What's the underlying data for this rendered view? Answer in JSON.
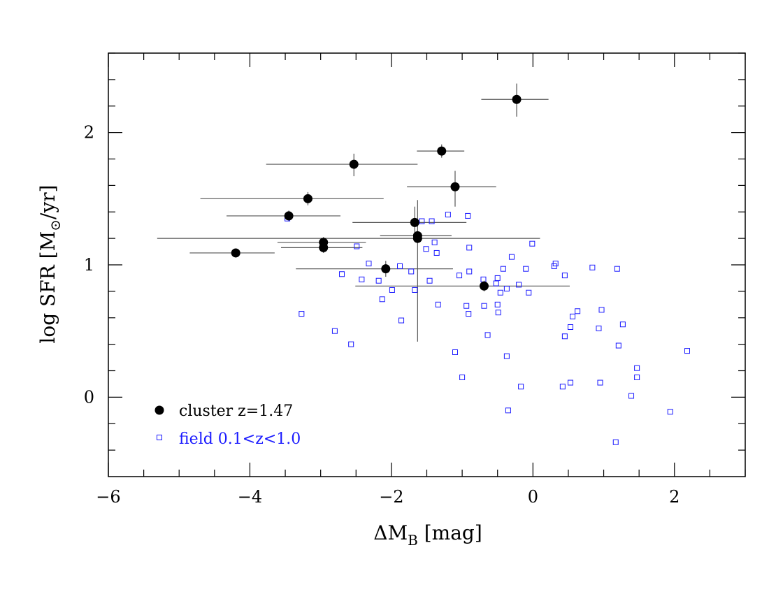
{
  "chart_data": {
    "type": "scatter",
    "xlabel": {
      "main": "ΔM",
      "sub": "B",
      "rest": " [mag]"
    },
    "ylabel": {
      "main": "log  SFR  [M",
      "sub": "⊙",
      "rest": "/yr]"
    },
    "xlim": [
      -6,
      3
    ],
    "ylim": [
      -0.6,
      2.6
    ],
    "x_ticks": [
      -6,
      -4,
      -2,
      0,
      2
    ],
    "x_tick_labels": [
      "−6",
      "−4",
      "−2",
      "0",
      "2"
    ],
    "y_ticks": [
      0,
      1,
      2
    ],
    "y_tick_labels": [
      "0",
      "1",
      "2"
    ],
    "grid": false,
    "legend_placement": "bottom-left",
    "series": [
      {
        "name": "cluster  z=1.47",
        "color": "#000000",
        "marker": "filled-circle",
        "points": [
          {
            "x": -0.23,
            "y": 2.25,
            "xerr": [
              0.5,
              0.45
            ],
            "yerr": [
              0.13,
              0.12
            ]
          },
          {
            "x": -1.29,
            "y": 1.86,
            "xerr": [
              0.35,
              0.32
            ],
            "yerr": [
              0.05,
              0.05
            ]
          },
          {
            "x": -2.53,
            "y": 1.76,
            "xerr": [
              1.24,
              0.9
            ],
            "yerr": [
              0.09,
              0.08
            ]
          },
          {
            "x": -1.1,
            "y": 1.59,
            "xerr": [
              0.68,
              0.58
            ],
            "yerr": [
              0.15,
              0.12
            ]
          },
          {
            "x": -3.18,
            "y": 1.5,
            "xerr": [
              1.52,
              1.07
            ],
            "yerr": [
              0.05,
              0.05
            ]
          },
          {
            "x": -3.45,
            "y": 1.37,
            "xerr": [
              0.88,
              0.73
            ],
            "yerr": [
              0.04,
              0.04
            ]
          },
          {
            "x": -1.67,
            "y": 1.32,
            "xerr": [
              0.88,
              0.73
            ],
            "yerr": [
              0.12,
              0.12
            ]
          },
          {
            "x": -1.63,
            "y": 1.22,
            "xerr": [
              0.53,
              0.48
            ],
            "yerr": [
              0.04,
              0.04
            ]
          },
          {
            "x": -1.63,
            "y": 1.2,
            "xerr": [
              3.68,
              1.73
            ],
            "yerr": [
              0.78,
              0.29
            ]
          },
          {
            "x": -2.96,
            "y": 1.17,
            "xerr": [
              0.65,
              0.6
            ],
            "yerr": [
              0.04,
              0.04
            ]
          },
          {
            "x": -2.96,
            "y": 1.13,
            "xerr": [
              0.6,
              0.55
            ],
            "yerr": [
              0.04,
              0.04
            ]
          },
          {
            "x": -4.2,
            "y": 1.09,
            "xerr": [
              0.65,
              0.55
            ],
            "yerr": [
              0.03,
              0.03
            ]
          },
          {
            "x": -2.08,
            "y": 0.97,
            "xerr": [
              1.27,
              0.95
            ],
            "yerr": [
              0.06,
              0.06
            ]
          },
          {
            "x": -0.69,
            "y": 0.84,
            "xerr": [
              1.82,
              1.21
            ],
            "yerr": [
              0.04,
              0.04
            ]
          }
        ]
      },
      {
        "name": "field  0.1<z<1.0",
        "color": "#1a1aff",
        "marker": "open-square",
        "points": [
          {
            "x": -3.47,
            "y": 1.35
          },
          {
            "x": -2.49,
            "y": 1.14
          },
          {
            "x": -1.2,
            "y": 1.38
          },
          {
            "x": -0.92,
            "y": 1.37
          },
          {
            "x": -1.57,
            "y": 1.33
          },
          {
            "x": -1.43,
            "y": 1.33
          },
          {
            "x": -1.39,
            "y": 1.17
          },
          {
            "x": -1.51,
            "y": 1.12
          },
          {
            "x": -1.36,
            "y": 1.09
          },
          {
            "x": -0.9,
            "y": 1.13
          },
          {
            "x": -0.01,
            "y": 1.16
          },
          {
            "x": -0.3,
            "y": 1.06
          },
          {
            "x": -2.32,
            "y": 1.01
          },
          {
            "x": -1.88,
            "y": 0.99
          },
          {
            "x": -1.72,
            "y": 0.95
          },
          {
            "x": -0.42,
            "y": 0.97
          },
          {
            "x": -0.1,
            "y": 0.97
          },
          {
            "x": 0.3,
            "y": 0.99
          },
          {
            "x": 0.32,
            "y": 1.01
          },
          {
            "x": 0.84,
            "y": 0.98
          },
          {
            "x": 1.19,
            "y": 0.97
          },
          {
            "x": -2.7,
            "y": 0.93
          },
          {
            "x": -2.42,
            "y": 0.89
          },
          {
            "x": -2.18,
            "y": 0.88
          },
          {
            "x": -1.46,
            "y": 0.88
          },
          {
            "x": -1.04,
            "y": 0.92
          },
          {
            "x": -0.9,
            "y": 0.95
          },
          {
            "x": -0.7,
            "y": 0.89
          },
          {
            "x": -0.5,
            "y": 0.9
          },
          {
            "x": -0.52,
            "y": 0.86
          },
          {
            "x": -0.2,
            "y": 0.85
          },
          {
            "x": 0.45,
            "y": 0.92
          },
          {
            "x": -1.99,
            "y": 0.81
          },
          {
            "x": -1.67,
            "y": 0.81
          },
          {
            "x": -0.46,
            "y": 0.79
          },
          {
            "x": -0.37,
            "y": 0.82
          },
          {
            "x": -0.06,
            "y": 0.79
          },
          {
            "x": -2.13,
            "y": 0.74
          },
          {
            "x": -1.34,
            "y": 0.7
          },
          {
            "x": -0.94,
            "y": 0.69
          },
          {
            "x": -0.69,
            "y": 0.69
          },
          {
            "x": -0.5,
            "y": 0.7
          },
          {
            "x": -0.49,
            "y": 0.64
          },
          {
            "x": -0.91,
            "y": 0.63
          },
          {
            "x": 0.63,
            "y": 0.65
          },
          {
            "x": 0.97,
            "y": 0.66
          },
          {
            "x": 0.56,
            "y": 0.61
          },
          {
            "x": -3.27,
            "y": 0.63
          },
          {
            "x": -1.86,
            "y": 0.58
          },
          {
            "x": 0.53,
            "y": 0.53
          },
          {
            "x": 0.93,
            "y": 0.52
          },
          {
            "x": 1.27,
            "y": 0.55
          },
          {
            "x": -2.8,
            "y": 0.5
          },
          {
            "x": -0.64,
            "y": 0.47
          },
          {
            "x": 0.45,
            "y": 0.46
          },
          {
            "x": -2.57,
            "y": 0.4
          },
          {
            "x": 1.21,
            "y": 0.39
          },
          {
            "x": -1.1,
            "y": 0.34
          },
          {
            "x": -0.37,
            "y": 0.31
          },
          {
            "x": 2.18,
            "y": 0.35
          },
          {
            "x": 1.47,
            "y": 0.22
          },
          {
            "x": 1.47,
            "y": 0.15
          },
          {
            "x": -1.0,
            "y": 0.15
          },
          {
            "x": 0.95,
            "y": 0.11
          },
          {
            "x": 0.53,
            "y": 0.11
          },
          {
            "x": 0.42,
            "y": 0.08
          },
          {
            "x": -0.17,
            "y": 0.08
          },
          {
            "x": 1.39,
            "y": 0.01
          },
          {
            "x": -0.35,
            "y": -0.1
          },
          {
            "x": 1.94,
            "y": -0.11
          },
          {
            "x": 1.17,
            "y": -0.34
          }
        ]
      }
    ]
  }
}
